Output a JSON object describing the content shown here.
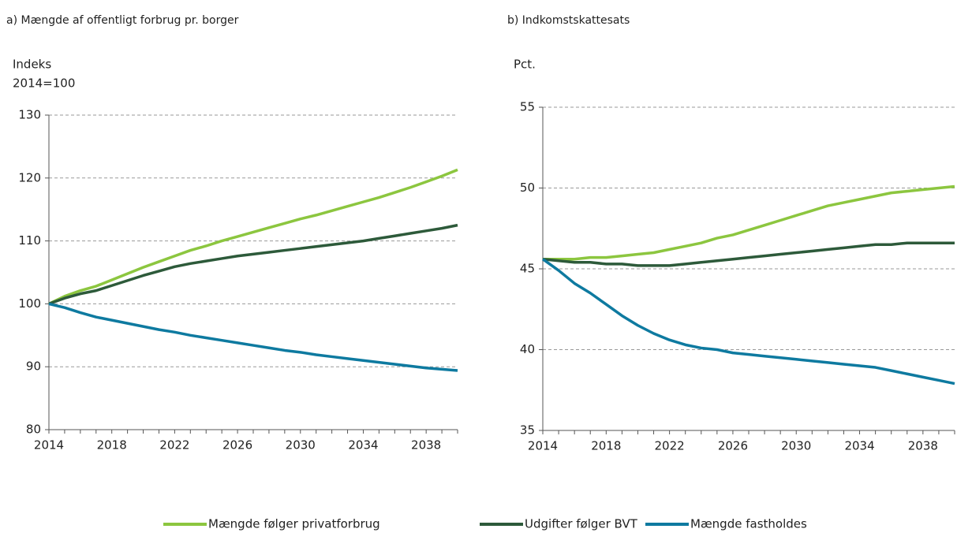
{
  "chart_data": [
    {
      "type": "line",
      "title": "a) Mængde af offentligt forbrug pr. borger",
      "ylabel": [
        "Indeks",
        "2014=100"
      ],
      "x": [
        2014,
        2015,
        2016,
        2017,
        2018,
        2019,
        2020,
        2021,
        2022,
        2023,
        2024,
        2025,
        2026,
        2027,
        2028,
        2029,
        2030,
        2031,
        2032,
        2033,
        2034,
        2035,
        2036,
        2037,
        2038,
        2039,
        2040
      ],
      "xlim": [
        2014,
        2040
      ],
      "xticks": [
        2014,
        2018,
        2022,
        2026,
        2030,
        2034,
        2038
      ],
      "ylim": [
        80,
        130
      ],
      "yticks": [
        80,
        90,
        100,
        110,
        120,
        130
      ],
      "grid": true,
      "series": [
        {
          "name": "Mængde følger privatforbrug",
          "color": "#8cc63f",
          "values": [
            100,
            101.2,
            102.1,
            102.8,
            103.8,
            104.8,
            105.8,
            106.7,
            107.6,
            108.5,
            109.2,
            110.0,
            110.7,
            111.4,
            112.1,
            112.8,
            113.5,
            114.1,
            114.8,
            115.5,
            116.2,
            116.9,
            117.7,
            118.5,
            119.4,
            120.3,
            121.3
          ]
        },
        {
          "name": "Udgifter følger BVT",
          "color": "#2d5a3a",
          "values": [
            100,
            100.9,
            101.6,
            102.1,
            102.9,
            103.7,
            104.5,
            105.2,
            105.9,
            106.4,
            106.8,
            107.2,
            107.6,
            107.9,
            108.2,
            108.5,
            108.8,
            109.1,
            109.4,
            109.7,
            110.0,
            110.4,
            110.8,
            111.2,
            111.6,
            112.0,
            112.5
          ]
        },
        {
          "name": "Mængde fastholdes",
          "color": "#0e7aa0",
          "values": [
            100,
            99.4,
            98.6,
            97.9,
            97.4,
            96.9,
            96.4,
            95.9,
            95.5,
            95.0,
            94.6,
            94.2,
            93.8,
            93.4,
            93.0,
            92.6,
            92.3,
            91.9,
            91.6,
            91.3,
            91.0,
            90.7,
            90.4,
            90.1,
            89.8,
            89.6,
            89.4
          ]
        }
      ]
    },
    {
      "type": "line",
      "title": "b) Indkomstskattesats",
      "ylabel": [
        "Pct."
      ],
      "x": [
        2014,
        2015,
        2016,
        2017,
        2018,
        2019,
        2020,
        2021,
        2022,
        2023,
        2024,
        2025,
        2026,
        2027,
        2028,
        2029,
        2030,
        2031,
        2032,
        2033,
        2034,
        2035,
        2036,
        2037,
        2038,
        2039,
        2040
      ],
      "xlim": [
        2014,
        2040
      ],
      "xticks": [
        2014,
        2018,
        2022,
        2026,
        2030,
        2034,
        2038
      ],
      "ylim": [
        35,
        55
      ],
      "yticks": [
        35,
        40,
        45,
        50,
        55
      ],
      "grid": true,
      "series": [
        {
          "color": "#8cc63f",
          "values": [
            45.6,
            45.6,
            45.6,
            45.7,
            45.7,
            45.8,
            45.9,
            46.0,
            46.2,
            46.4,
            46.6,
            46.9,
            47.1,
            47.4,
            47.7,
            48.0,
            48.3,
            48.6,
            48.9,
            49.1,
            49.3,
            49.5,
            49.7,
            49.8,
            49.9,
            50.0,
            50.1
          ]
        },
        {
          "color": "#2d5a3a",
          "values": [
            45.6,
            45.5,
            45.4,
            45.4,
            45.3,
            45.3,
            45.2,
            45.2,
            45.2,
            45.3,
            45.4,
            45.5,
            45.6,
            45.7,
            45.8,
            45.9,
            46.0,
            46.1,
            46.2,
            46.3,
            46.4,
            46.5,
            46.5,
            46.6,
            46.6,
            46.6,
            46.6
          ]
        },
        {
          "color": "#0e7aa0",
          "values": [
            45.6,
            44.9,
            44.1,
            43.5,
            42.8,
            42.1,
            41.5,
            41.0,
            40.6,
            40.3,
            40.1,
            40.0,
            39.8,
            39.7,
            39.6,
            39.5,
            39.4,
            39.3,
            39.2,
            39.1,
            39.0,
            38.9,
            38.7,
            38.5,
            38.3,
            38.1,
            37.9
          ]
        }
      ]
    }
  ]
}
